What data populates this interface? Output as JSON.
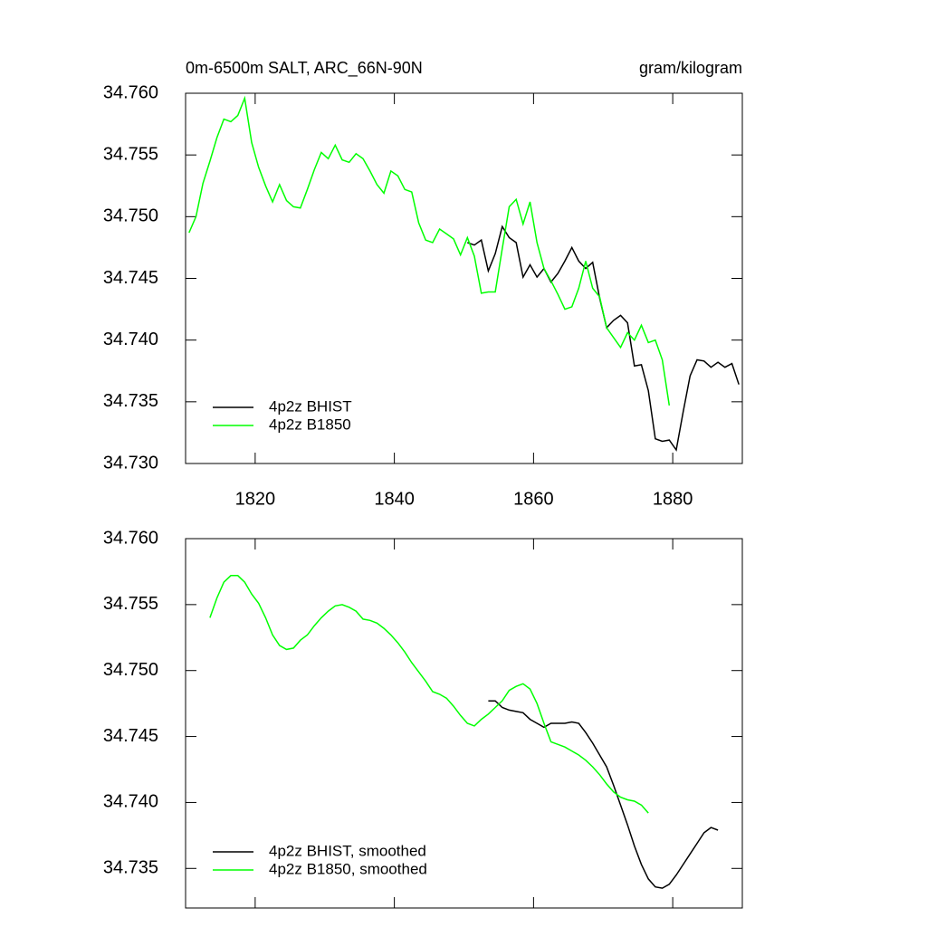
{
  "chart_data": [
    {
      "type": "line",
      "title": "0m-6500m SALT, ARC_66N-90N",
      "units": "gram/kilogram",
      "xlim": [
        1810,
        1890
      ],
      "xticks": [
        1820,
        1840,
        1860,
        1880
      ],
      "show_xtick_labels": true,
      "ylim": [
        34.73,
        34.76
      ],
      "yticks": [
        {
          "value": 34.73,
          "label": "34.730"
        },
        34.735,
        {
          "value": 34.74,
          "label": "34.740"
        },
        34.745,
        {
          "value": 34.75,
          "label": "34.750"
        },
        34.755,
        {
          "value": 34.76,
          "label": "34.760"
        }
      ],
      "legend": "lower left",
      "series": [
        {
          "name": "4p2z BHIST",
          "color": "#000000",
          "x": [
            1850.5,
            1851.5,
            1852.5,
            1853.5,
            1854.5,
            1855.5,
            1856.5,
            1857.5,
            1858.5,
            1859.5,
            1860.5,
            1861.5,
            1862.5,
            1863.5,
            1864.5,
            1865.5,
            1866.5,
            1867.5,
            1868.5,
            1869.5,
            1870.5,
            1871.5,
            1872.5,
            1873.5,
            1874.5,
            1875.5,
            1876.5,
            1877.5,
            1878.5,
            1879.5,
            1880.5,
            1881.5,
            1882.5,
            1883.5,
            1884.5,
            1885.5,
            1886.5,
            1887.5,
            1888.5,
            1889.5
          ],
          "values": [
            34.7479,
            34.7477,
            34.7481,
            34.7456,
            34.747,
            34.7492,
            34.7483,
            34.7479,
            34.7451,
            34.7461,
            34.7451,
            34.7458,
            34.7447,
            34.7454,
            34.7464,
            34.7475,
            34.7464,
            34.7458,
            34.7463,
            34.7434,
            34.741,
            34.7416,
            34.742,
            34.7414,
            34.7379,
            34.738,
            34.7359,
            34.732,
            34.7318,
            34.7319,
            34.7311,
            34.7342,
            34.7371,
            34.7384,
            34.7383,
            34.7378,
            34.7382,
            34.7378,
            34.7381,
            34.7364
          ]
        },
        {
          "name": "4p2z B1850",
          "color": "#00ff00",
          "x": [
            1810.5,
            1811.5,
            1812.5,
            1813.5,
            1814.5,
            1815.5,
            1816.5,
            1817.5,
            1818.5,
            1819.5,
            1820.5,
            1821.5,
            1822.5,
            1823.5,
            1824.5,
            1825.5,
            1826.5,
            1827.5,
            1828.5,
            1829.5,
            1830.5,
            1831.5,
            1832.5,
            1833.5,
            1834.5,
            1835.5,
            1836.5,
            1837.5,
            1838.5,
            1839.5,
            1840.5,
            1841.5,
            1842.5,
            1843.5,
            1844.5,
            1845.5,
            1846.5,
            1847.5,
            1848.5,
            1849.5,
            1850.5,
            1851.5,
            1852.5,
            1853.5,
            1854.5,
            1855.5,
            1856.5,
            1857.5,
            1858.5,
            1859.5,
            1860.5,
            1861.5,
            1862.5,
            1863.5,
            1864.5,
            1865.5,
            1866.5,
            1867.5,
            1868.5,
            1869.5,
            1870.5,
            1871.5,
            1872.5,
            1873.5,
            1874.5,
            1875.5,
            1876.5,
            1877.5,
            1878.5,
            1879.5
          ],
          "values": [
            34.7487,
            34.75,
            34.7527,
            34.7545,
            34.7564,
            34.7579,
            34.7577,
            34.7582,
            34.7596,
            34.756,
            34.754,
            34.7525,
            34.7512,
            34.7526,
            34.7513,
            34.7508,
            34.7507,
            34.7522,
            34.7538,
            34.7552,
            34.7547,
            34.7558,
            34.7546,
            34.7544,
            34.7551,
            34.7547,
            34.7537,
            34.7526,
            34.7519,
            34.7537,
            34.7533,
            34.7522,
            34.752,
            34.7495,
            34.7481,
            34.7479,
            34.749,
            34.7486,
            34.7482,
            34.7469,
            34.7483,
            34.7468,
            34.7438,
            34.7439,
            34.7439,
            34.7474,
            34.7508,
            34.7514,
            34.7494,
            34.7512,
            34.7479,
            34.7458,
            34.7448,
            34.7437,
            34.7425,
            34.7427,
            34.7442,
            34.7464,
            34.7442,
            34.7435,
            34.741,
            34.7402,
            34.7394,
            34.7406,
            34.74,
            34.7412,
            34.7398,
            34.74,
            34.7384,
            34.7347
          ]
        }
      ]
    },
    {
      "type": "line",
      "xlim": [
        1810,
        1890
      ],
      "xticks": [
        1820,
        1840,
        1860,
        1880
      ],
      "show_xtick_labels": false,
      "ylim": [
        34.732,
        34.76
      ],
      "yticks": [
        34.735,
        {
          "value": 34.74,
          "label": "34.740"
        },
        34.745,
        {
          "value": 34.75,
          "label": "34.750"
        },
        34.755,
        {
          "value": 34.76,
          "label": "34.760"
        }
      ],
      "legend": "lower left",
      "series": [
        {
          "name": "4p2z BHIST, smoothed",
          "color": "#000000",
          "x": [
            1853.5,
            1854.5,
            1855.5,
            1856.5,
            1857.5,
            1858.5,
            1859.5,
            1860.5,
            1861.5,
            1862.5,
            1863.5,
            1864.5,
            1865.5,
            1866.5,
            1867.5,
            1868.5,
            1869.5,
            1870.5,
            1871.5,
            1872.5,
            1873.5,
            1874.5,
            1875.5,
            1876.5,
            1877.5,
            1878.5,
            1879.5,
            1880.5,
            1881.5,
            1882.5,
            1883.5,
            1884.5,
            1885.5,
            1886.5
          ],
          "values": [
            34.7477,
            34.7477,
            34.7472,
            34.747,
            34.7469,
            34.7468,
            34.7463,
            34.746,
            34.7457,
            34.746,
            34.746,
            34.746,
            34.7461,
            34.746,
            34.7453,
            34.7445,
            34.7436,
            34.7427,
            34.7413,
            34.7398,
            34.7383,
            34.7367,
            34.7353,
            34.7342,
            34.7336,
            34.7335,
            34.7338,
            34.7345,
            34.7353,
            34.7361,
            34.7369,
            34.7377,
            34.7381,
            34.7379
          ]
        },
        {
          "name": "4p2z B1850, smoothed",
          "color": "#00ff00",
          "x": [
            1813.5,
            1814.5,
            1815.5,
            1816.5,
            1817.5,
            1818.5,
            1819.5,
            1820.5,
            1821.5,
            1822.5,
            1823.5,
            1824.5,
            1825.5,
            1826.5,
            1827.5,
            1828.5,
            1829.5,
            1830.5,
            1831.5,
            1832.5,
            1833.5,
            1834.5,
            1835.5,
            1836.5,
            1837.5,
            1838.5,
            1839.5,
            1840.5,
            1841.5,
            1842.5,
            1843.5,
            1844.5,
            1845.5,
            1846.5,
            1847.5,
            1848.5,
            1849.5,
            1850.5,
            1851.5,
            1852.5,
            1853.5,
            1854.5,
            1855.5,
            1856.5,
            1857.5,
            1858.5,
            1859.5,
            1860.5,
            1861.5,
            1862.5,
            1863.5,
            1864.5,
            1865.5,
            1866.5,
            1867.5,
            1868.5,
            1869.5,
            1870.5,
            1871.5,
            1872.5,
            1873.5,
            1874.5,
            1875.5,
            1876.5
          ],
          "values": [
            34.754,
            34.7555,
            34.7567,
            34.7572,
            34.7572,
            34.7567,
            34.7558,
            34.7551,
            34.754,
            34.7527,
            34.7519,
            34.7516,
            34.7517,
            34.7523,
            34.7527,
            34.7534,
            34.754,
            34.7545,
            34.7549,
            34.755,
            34.7548,
            34.7545,
            34.7539,
            34.7538,
            34.7536,
            34.7532,
            34.7527,
            34.7521,
            34.7514,
            34.7506,
            34.7499,
            34.7492,
            34.7484,
            34.7482,
            34.7479,
            34.7473,
            34.7466,
            34.746,
            34.7458,
            34.7463,
            34.7467,
            34.7472,
            34.7477,
            34.7485,
            34.7488,
            34.749,
            34.7486,
            34.7475,
            34.746,
            34.7446,
            34.7444,
            34.7442,
            34.7439,
            34.7436,
            34.7432,
            34.7427,
            34.7421,
            34.7414,
            34.7408,
            34.7404,
            34.7402,
            34.7401,
            34.7398,
            34.7392
          ]
        }
      ]
    }
  ]
}
